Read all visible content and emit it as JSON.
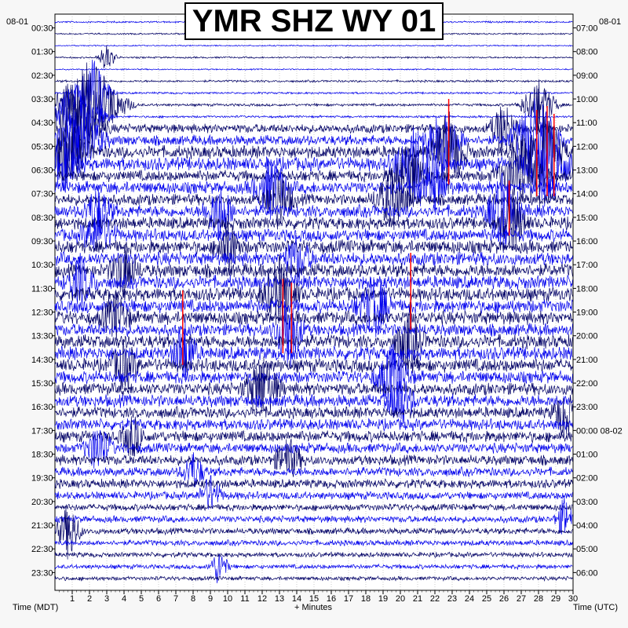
{
  "chart_data": {
    "type": "line",
    "title": "YMR SHZ WY 01",
    "xlabel": "+ Minutes",
    "left_axis_title": "Time (MDT)",
    "right_axis_title": "Time (UTC)",
    "left_date": "08-01",
    "right_date": "08-01",
    "xlim": [
      0,
      30
    ],
    "x_ticks": [
      1,
      2,
      3,
      4,
      5,
      6,
      7,
      8,
      9,
      10,
      11,
      12,
      13,
      14,
      15,
      16,
      17,
      18,
      19,
      20,
      21,
      22,
      23,
      24,
      25,
      26,
      27,
      28,
      29,
      30
    ],
    "rows": 48,
    "row_minutes": 30,
    "left_labels": [
      "00:30",
      "01:30",
      "02:30",
      "03:30",
      "04:30",
      "05:30",
      "06:30",
      "07:30",
      "08:30",
      "09:30",
      "10:30",
      "11:30",
      "12:30",
      "13:30",
      "14:30",
      "15:30",
      "16:30",
      "17:30",
      "18:30",
      "19:30",
      "20:30",
      "21:30",
      "22:30",
      "23:30"
    ],
    "right_labels": [
      "07:00",
      "08:00",
      "09:00",
      "10:00",
      "11:00",
      "12:00",
      "13:00",
      "14:00",
      "15:00",
      "16:00",
      "17:00",
      "18:00",
      "19:00",
      "20:00",
      "21:00",
      "22:00",
      "23:00",
      "00:00 08-02",
      "01:00",
      "02:00",
      "03:00",
      "04:00",
      "05:00",
      "06:00"
    ],
    "trace_colors": [
      "#0000ee",
      "#000066"
    ],
    "clip_color": "#ff0000",
    "row_amplitude": [
      0.08,
      0.07,
      0.06,
      0.08,
      0.06,
      0.1,
      0.09,
      0.12,
      0.1,
      0.4,
      0.45,
      0.55,
      0.6,
      0.5,
      0.55,
      0.5,
      0.55,
      0.55,
      0.55,
      0.6,
      0.6,
      0.6,
      0.6,
      0.6,
      0.6,
      0.6,
      0.55,
      0.6,
      0.6,
      0.6,
      0.55,
      0.55,
      0.55,
      0.5,
      0.5,
      0.5,
      0.45,
      0.45,
      0.4,
      0.4,
      0.35,
      0.3,
      0.3,
      0.28,
      0.25,
      0.22,
      0.2,
      0.18
    ],
    "events": [
      {
        "row": 3,
        "minute": 3.0,
        "amp": 1.2,
        "dur": 0.8
      },
      {
        "row": 6,
        "minute": 2.2,
        "amp": 3.0,
        "dur": 1.5
      },
      {
        "row": 7,
        "minute": 2.0,
        "amp": 4.0,
        "dur": 3.0
      },
      {
        "row": 8,
        "minute": 1.2,
        "amp": 3.0,
        "dur": 2.5
      },
      {
        "row": 9,
        "minute": 1.0,
        "amp": 3.5,
        "dur": 2.5
      },
      {
        "row": 10,
        "minute": 1.5,
        "amp": 3.0,
        "dur": 2.0
      },
      {
        "row": 11,
        "minute": 0.6,
        "amp": 2.5,
        "dur": 2.0
      },
      {
        "row": 12,
        "minute": 0.5,
        "amp": 2.0,
        "dur": 1.5
      },
      {
        "row": 7,
        "minute": 28.0,
        "amp": 2.5,
        "dur": 1.5
      },
      {
        "row": 9,
        "minute": 26.0,
        "amp": 2.5,
        "dur": 1.2
      },
      {
        "row": 10,
        "minute": 27.8,
        "amp": 4.0,
        "dur": 2.0
      },
      {
        "row": 11,
        "minute": 28.0,
        "amp": 4.5,
        "dur": 2.0
      },
      {
        "row": 12,
        "minute": 28.5,
        "amp": 3.5,
        "dur": 2.0
      },
      {
        "row": 13,
        "minute": 27.0,
        "amp": 3.0,
        "dur": 2.0
      },
      {
        "row": 16,
        "minute": 26.0,
        "amp": 3.5,
        "dur": 1.5
      },
      {
        "row": 17,
        "minute": 26.5,
        "amp": 2.5,
        "dur": 1.2
      },
      {
        "row": 10,
        "minute": 22.5,
        "amp": 3.0,
        "dur": 1.5
      },
      {
        "row": 11,
        "minute": 22.8,
        "amp": 3.5,
        "dur": 1.5
      },
      {
        "row": 12,
        "minute": 21.0,
        "amp": 3.5,
        "dur": 2.0
      },
      {
        "row": 13,
        "minute": 20.5,
        "amp": 3.0,
        "dur": 1.5
      },
      {
        "row": 14,
        "minute": 22.0,
        "amp": 2.0,
        "dur": 1.2
      },
      {
        "row": 15,
        "minute": 19.5,
        "amp": 2.5,
        "dur": 1.5
      },
      {
        "row": 14,
        "minute": 12.5,
        "amp": 2.5,
        "dur": 1.5
      },
      {
        "row": 15,
        "minute": 13.0,
        "amp": 2.5,
        "dur": 1.2
      },
      {
        "row": 16,
        "minute": 9.5,
        "amp": 2.5,
        "dur": 1.2
      },
      {
        "row": 16,
        "minute": 2.5,
        "amp": 2.2,
        "dur": 1.2
      },
      {
        "row": 18,
        "minute": 2.5,
        "amp": 2.0,
        "dur": 1.5
      },
      {
        "row": 19,
        "minute": 10.0,
        "amp": 2.5,
        "dur": 1.0
      },
      {
        "row": 20,
        "minute": 14.0,
        "amp": 2.0,
        "dur": 1.2
      },
      {
        "row": 21,
        "minute": 4.0,
        "amp": 2.2,
        "dur": 1.2
      },
      {
        "row": 22,
        "minute": 1.5,
        "amp": 2.0,
        "dur": 1.2
      },
      {
        "row": 23,
        "minute": 13.0,
        "amp": 3.0,
        "dur": 1.5
      },
      {
        "row": 24,
        "minute": 18.5,
        "amp": 2.5,
        "dur": 1.5
      },
      {
        "row": 25,
        "minute": 3.5,
        "amp": 2.0,
        "dur": 1.2
      },
      {
        "row": 26,
        "minute": 13.5,
        "amp": 3.5,
        "dur": 1.2
      },
      {
        "row": 27,
        "minute": 20.5,
        "amp": 3.0,
        "dur": 1.2
      },
      {
        "row": 28,
        "minute": 7.5,
        "amp": 3.0,
        "dur": 1.0
      },
      {
        "row": 29,
        "minute": 4.0,
        "amp": 2.0,
        "dur": 1.2
      },
      {
        "row": 30,
        "minute": 19.5,
        "amp": 2.5,
        "dur": 1.5
      },
      {
        "row": 31,
        "minute": 12.0,
        "amp": 2.8,
        "dur": 1.5
      },
      {
        "row": 32,
        "minute": 20.0,
        "amp": 2.2,
        "dur": 1.2
      },
      {
        "row": 33,
        "minute": 29.5,
        "amp": 2.2,
        "dur": 1.0
      },
      {
        "row": 35,
        "minute": 4.5,
        "amp": 1.8,
        "dur": 1.0
      },
      {
        "row": 36,
        "minute": 2.5,
        "amp": 2.0,
        "dur": 1.2
      },
      {
        "row": 37,
        "minute": 13.5,
        "amp": 1.8,
        "dur": 1.2
      },
      {
        "row": 38,
        "minute": 8.0,
        "amp": 1.6,
        "dur": 1.0
      },
      {
        "row": 40,
        "minute": 9.0,
        "amp": 1.6,
        "dur": 1.0
      },
      {
        "row": 42,
        "minute": 29.5,
        "amp": 1.8,
        "dur": 0.8
      },
      {
        "row": 43,
        "minute": 0.8,
        "amp": 2.5,
        "dur": 1.0
      },
      {
        "row": 46,
        "minute": 9.5,
        "amp": 1.6,
        "dur": 0.8
      }
    ],
    "clips": [
      {
        "row": 10,
        "minute": 22.8,
        "top": 126,
        "bottom": 235
      },
      {
        "row": 11,
        "minute": 27.9,
        "top": 140,
        "bottom": 250
      },
      {
        "row": 11,
        "minute": 28.5,
        "top": 135,
        "bottom": 250
      },
      {
        "row": 11,
        "minute": 28.9,
        "top": 145,
        "bottom": 250
      },
      {
        "row": 16,
        "minute": 26.3,
        "top": 230,
        "bottom": 300
      },
      {
        "row": 21,
        "minute": 20.6,
        "top": 322,
        "bottom": 420
      },
      {
        "row": 23,
        "minute": 7.4,
        "top": 370,
        "bottom": 465
      },
      {
        "row": 23,
        "minute": 13.2,
        "top": 355,
        "bottom": 450
      },
      {
        "row": 23,
        "minute": 13.7,
        "top": 360,
        "bottom": 450
      }
    ]
  }
}
